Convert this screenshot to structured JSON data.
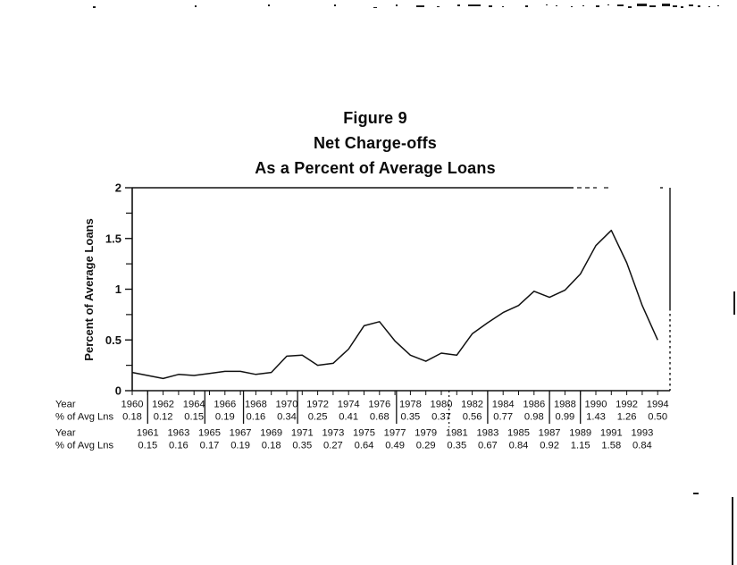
{
  "figure": {
    "number": "Figure 9",
    "title": "Net Charge-offs",
    "subtitle": "As a Percent of Average Loans"
  },
  "chart_data": {
    "type": "line",
    "title": "Figure 9 — Net Charge-offs As a Percent of Average Loans",
    "xlabel": "Year",
    "ylabel": "Percent of Average Loans",
    "xlim": [
      1960,
      1994
    ],
    "ylim": [
      0,
      2
    ],
    "grid": false,
    "legend": "none",
    "x": [
      1960,
      1961,
      1962,
      1963,
      1964,
      1965,
      1966,
      1967,
      1968,
      1969,
      1970,
      1971,
      1972,
      1973,
      1974,
      1975,
      1976,
      1977,
      1978,
      1979,
      1980,
      1981,
      1982,
      1983,
      1984,
      1985,
      1986,
      1987,
      1988,
      1989,
      1990,
      1991,
      1992,
      1993,
      1994
    ],
    "y": [
      0.18,
      0.15,
      0.12,
      0.16,
      0.15,
      0.17,
      0.19,
      0.19,
      0.16,
      0.18,
      0.34,
      0.35,
      0.25,
      0.27,
      0.41,
      0.64,
      0.68,
      0.49,
      0.35,
      0.29,
      0.37,
      0.35,
      0.56,
      0.67,
      0.77,
      0.84,
      0.98,
      0.92,
      0.99,
      1.15,
      1.43,
      1.58,
      1.26,
      0.84,
      0.5
    ],
    "y_ticks": [
      {
        "v": 2,
        "label": "2"
      },
      {
        "v": 1.5,
        "label": "1.5"
      },
      {
        "v": 1,
        "label": "1"
      },
      {
        "v": 0.5,
        "label": "0.5"
      },
      {
        "v": 0,
        "label": "0"
      }
    ],
    "y_minor_ticks": [
      0.25,
      0.75,
      1.25,
      1.75
    ]
  },
  "data_table_even_years": {
    "year_row_label": "Year",
    "value_row_label": "% of Avg Lns",
    "years": [
      "1960",
      "1962",
      "1964",
      "1966",
      "1968",
      "1970",
      "1972",
      "1974",
      "1976",
      "1978",
      "1980",
      "1982",
      "1984",
      "1986",
      "1988",
      "1990",
      "1992",
      "1994"
    ],
    "values": [
      "0.18",
      "0.12",
      "0.15",
      "0.19",
      "0.16",
      "0.34",
      "0.25",
      "0.41",
      "0.68",
      "0.35",
      "0.37",
      "0.56",
      "0.77",
      "0.98",
      "0.99",
      "1.43",
      "1.26",
      "0.50"
    ]
  },
  "data_table_odd_years": {
    "year_row_label": "Year",
    "value_row_label": "% of Avg Lns",
    "years": [
      "1961",
      "1963",
      "1965",
      "1967",
      "1969",
      "1971",
      "1973",
      "1975",
      "1977",
      "1979",
      "1981",
      "1983",
      "1985",
      "1987",
      "1989",
      "1991",
      "1993"
    ],
    "values": [
      "0.15",
      "0.16",
      "0.17",
      "0.19",
      "0.18",
      "0.35",
      "0.27",
      "0.64",
      "0.49",
      "0.29",
      "0.35",
      "0.67",
      "0.84",
      "0.92",
      "1.15",
      "1.58",
      "0.84"
    ]
  },
  "colors": {
    "ink": "#101010",
    "paper": "#ffffff"
  }
}
